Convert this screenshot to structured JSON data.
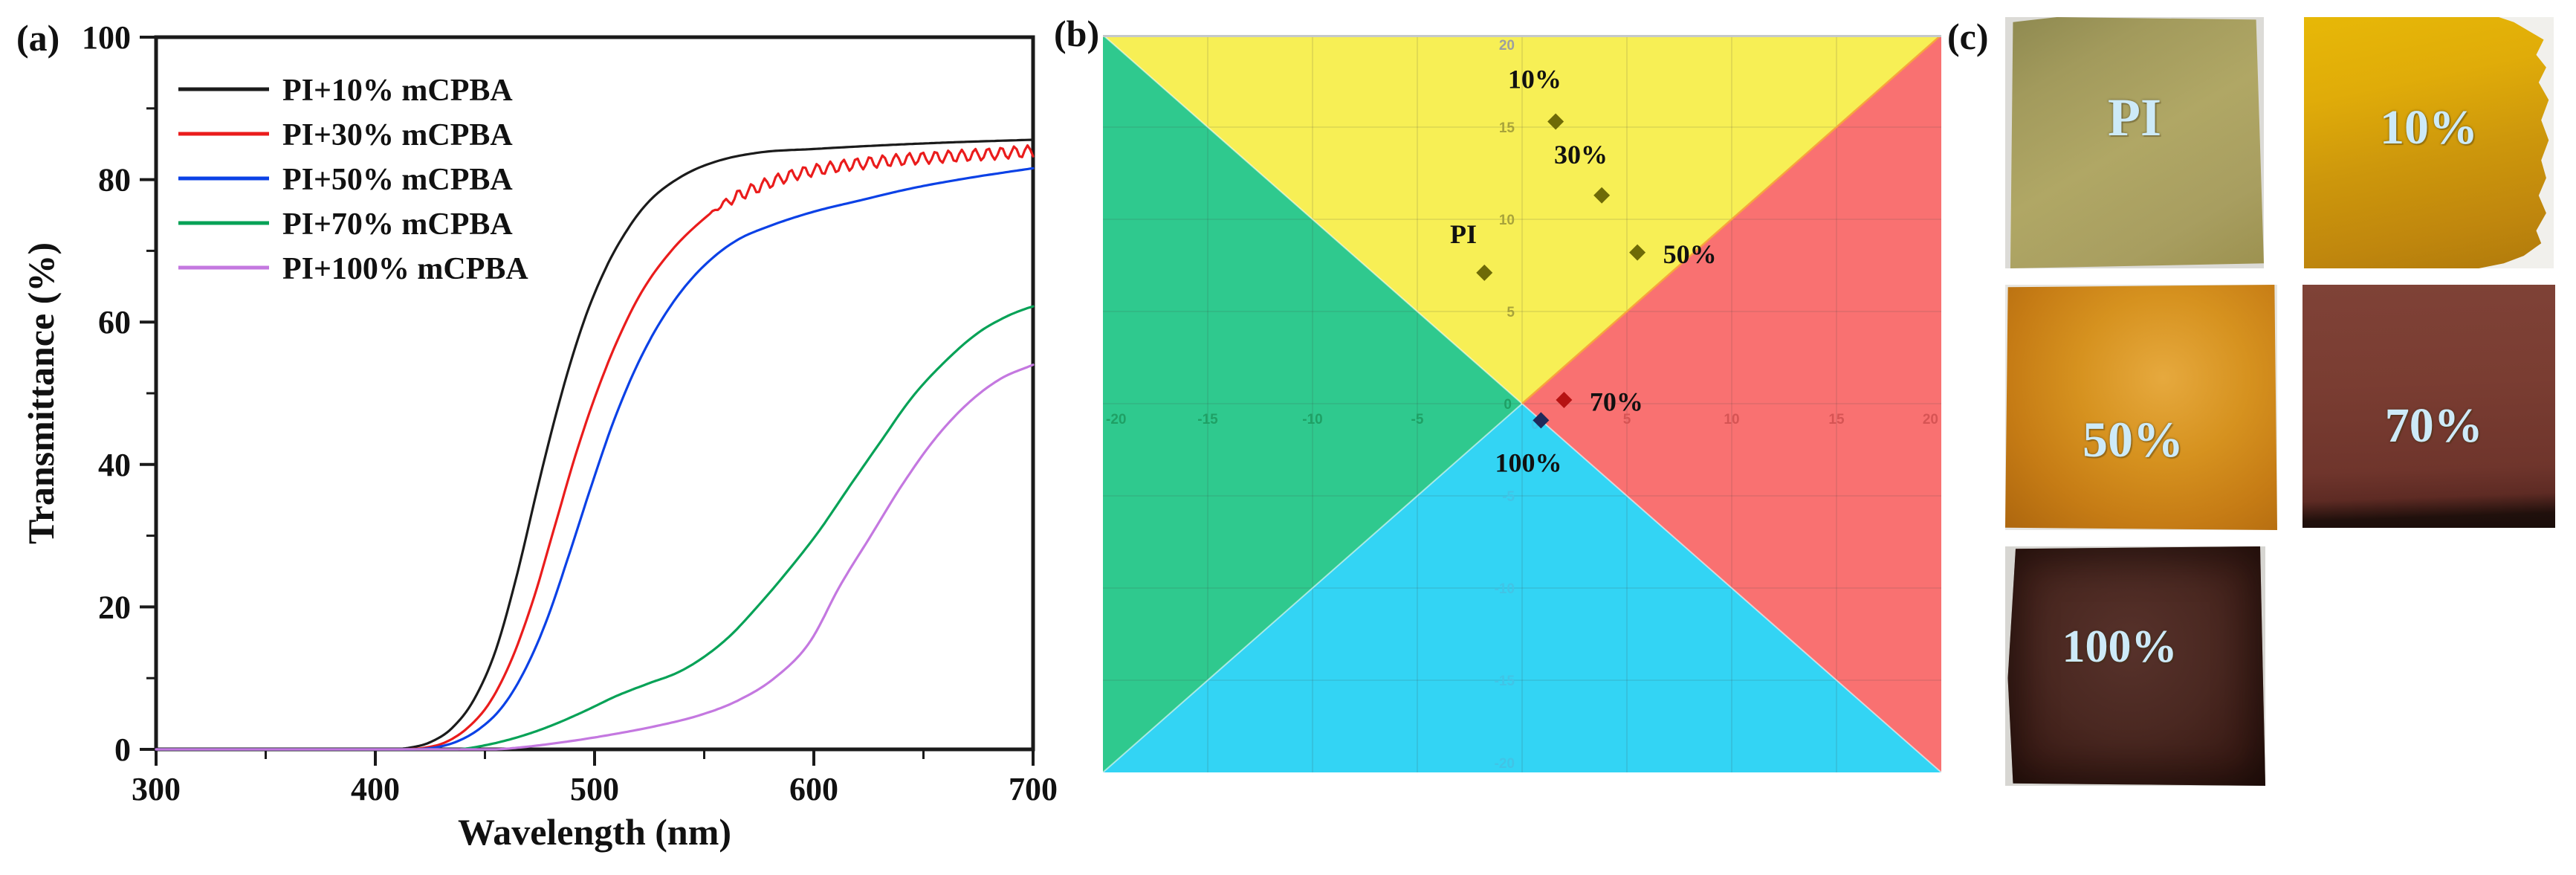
{
  "panels": {
    "a_label": "(a)",
    "b_label": "(b)",
    "c_label": "(c)"
  },
  "chart_data": [
    {
      "id": "transmittance-spectra",
      "type": "line",
      "title": "",
      "xlabel": "Wavelength (nm)",
      "ylabel": "Transmittance (%)",
      "xlim": [
        300,
        700
      ],
      "ylim": [
        0,
        100
      ],
      "x_major_ticks": [
        300,
        400,
        500,
        600,
        700
      ],
      "x_minor_ticks": [
        350,
        450,
        550,
        650
      ],
      "y_major_ticks": [
        0,
        20,
        40,
        60,
        80,
        100
      ],
      "y_minor_ticks": [
        10,
        30,
        50,
        70,
        90
      ],
      "grid": false,
      "legend_position": "upper-left",
      "axis_color": "#1a1a1a",
      "series": [
        {
          "name": "PI+10% mCPBA",
          "color": "#1b1b1b",
          "points": [
            [
              300,
              0
            ],
            [
              405,
              0
            ],
            [
              415,
              0.2
            ],
            [
              425,
              1
            ],
            [
              435,
              3
            ],
            [
              445,
              7
            ],
            [
              455,
              14
            ],
            [
              465,
              25
            ],
            [
              475,
              38
            ],
            [
              485,
              50
            ],
            [
              495,
              60
            ],
            [
              505,
              67.5
            ],
            [
              515,
              73
            ],
            [
              525,
              77
            ],
            [
              540,
              80.5
            ],
            [
              555,
              82.5
            ],
            [
              575,
              83.8
            ],
            [
              600,
              84.3
            ],
            [
              630,
              84.8
            ],
            [
              660,
              85.2
            ],
            [
              700,
              85.6
            ]
          ]
        },
        {
          "name": "PI+30% mCPBA",
          "color": "#ea1c1c",
          "ripple": {
            "start": 552,
            "end": 700,
            "amplitude": 0.85,
            "period": 6
          },
          "points": [
            [
              300,
              0
            ],
            [
              412,
              0
            ],
            [
              422,
              0.2
            ],
            [
              432,
              1
            ],
            [
              442,
              3
            ],
            [
              452,
              6.5
            ],
            [
              462,
              12.5
            ],
            [
              472,
              21
            ],
            [
              482,
              31.5
            ],
            [
              492,
              42
            ],
            [
              502,
              51
            ],
            [
              512,
              58.5
            ],
            [
              522,
              64.5
            ],
            [
              535,
              70
            ],
            [
              548,
              74
            ],
            [
              560,
              76.8
            ],
            [
              575,
              79
            ],
            [
              590,
              80.6
            ],
            [
              610,
              81.8
            ],
            [
              640,
              82.8
            ],
            [
              670,
              83.4
            ],
            [
              700,
              84
            ]
          ]
        },
        {
          "name": "PI+50% mCPBA",
          "color": "#0b41e6",
          "points": [
            [
              300,
              0
            ],
            [
              418,
              0
            ],
            [
              428,
              0.3
            ],
            [
              438,
              1.2
            ],
            [
              448,
              3
            ],
            [
              458,
              6
            ],
            [
              468,
              11
            ],
            [
              478,
              18
            ],
            [
              488,
              27
            ],
            [
              498,
              36.5
            ],
            [
              508,
              45.5
            ],
            [
              518,
              53
            ],
            [
              528,
              59
            ],
            [
              540,
              64.5
            ],
            [
              552,
              68.5
            ],
            [
              565,
              71.5
            ],
            [
              580,
              73.5
            ],
            [
              600,
              75.5
            ],
            [
              620,
              77
            ],
            [
              645,
              78.8
            ],
            [
              670,
              80.2
            ],
            [
              700,
              81.6
            ]
          ]
        },
        {
          "name": "PI+70% mCPBA",
          "color": "#07a257",
          "points": [
            [
              300,
              0
            ],
            [
              438,
              0
            ],
            [
              452,
              0.7
            ],
            [
              466,
              1.8
            ],
            [
              480,
              3.3
            ],
            [
              495,
              5.3
            ],
            [
              510,
              7.5
            ],
            [
              525,
              9.3
            ],
            [
              538,
              10.8
            ],
            [
              550,
              13
            ],
            [
              562,
              16
            ],
            [
              575,
              20.3
            ],
            [
              588,
              25
            ],
            [
              602,
              30.5
            ],
            [
              616,
              36.8
            ],
            [
              630,
              43
            ],
            [
              645,
              49.5
            ],
            [
              660,
              54.5
            ],
            [
              675,
              58.5
            ],
            [
              688,
              60.8
            ],
            [
              696,
              61.8
            ],
            [
              700,
              62.2
            ]
          ]
        },
        {
          "name": "PI+100% mCPBA",
          "color": "#c478e0",
          "points": [
            [
              300,
              0
            ],
            [
              455,
              0
            ],
            [
              470,
              0.4
            ],
            [
              490,
              1.2
            ],
            [
              510,
              2.2
            ],
            [
              530,
              3.4
            ],
            [
              548,
              4.8
            ],
            [
              565,
              6.8
            ],
            [
              582,
              10
            ],
            [
              598,
              15
            ],
            [
              612,
              23
            ],
            [
              626,
              30
            ],
            [
              640,
              37
            ],
            [
              655,
              43.5
            ],
            [
              670,
              48.5
            ],
            [
              685,
              52
            ],
            [
              700,
              54
            ]
          ]
        }
      ]
    },
    {
      "id": "color-coordinates",
      "type": "scatter",
      "xlim": [
        -20,
        20
      ],
      "ylim": [
        -20,
        20
      ],
      "grid_step": 5,
      "x_tick_labels": [
        -20,
        -15,
        -10,
        -5,
        0,
        5,
        10,
        15,
        20
      ],
      "y_tick_labels": [
        20,
        15,
        10,
        5,
        0,
        -5,
        -10,
        -15,
        -20
      ],
      "quadrant_colors": {
        "top": "#f7ef55",
        "right": "#f97171",
        "bottom": "#33d4f4",
        "left": "#2fc98e"
      },
      "boundary_orange": "#f8a43c",
      "tick_colors": {
        "x_negative": "#1fa065",
        "x_zero": "#1fa065",
        "x_positive": "#d65454",
        "y_positive": "#a8a33b",
        "y_top": "#9c9fa0",
        "y_zero": "#41c4e6",
        "y_negative": "#41c4e6"
      },
      "points": [
        {
          "label": "PI",
          "x": -1.8,
          "y": 7.1,
          "color": "#6e6a07",
          "label_x": -2.8,
          "label_y": 9.2
        },
        {
          "label": "10%",
          "x": 1.6,
          "y": 15.3,
          "color": "#6e6a07",
          "label_x": 0.6,
          "label_y": 17.6
        },
        {
          "label": "30%",
          "x": 3.8,
          "y": 11.3,
          "color": "#6e6a07",
          "label_x": 2.8,
          "label_y": 13.5
        },
        {
          "label": "50%",
          "x": 5.5,
          "y": 8.2,
          "color": "#6e6a07",
          "label_x": 8.0,
          "label_y": 8.1
        },
        {
          "label": "70%",
          "x": 2.0,
          "y": 0.2,
          "color": "#b61313",
          "label_x": 4.5,
          "label_y": 0.1
        },
        {
          "label": "100%",
          "x": 0.9,
          "y": -0.9,
          "color": "#1f2a5a",
          "label_x": 0.3,
          "label_y": -3.2
        }
      ],
      "point_label_color": "#111111"
    }
  ],
  "panel_c": {
    "photos": [
      {
        "label": "PI",
        "label_color": "#cdeaf8",
        "photo_background": "#dcdbd7",
        "film_background": "linear-gradient(150deg,#8e8950 0%,#a29a5c 22%,#b0a765 50%,#a89e60 78%,#9c914f 100%)"
      },
      {
        "label": "10%",
        "label_color": "#cdeaf8",
        "photo_background": "#f1f0ec",
        "film_background": "linear-gradient(168deg,#e7b807 0%,#e0ac09 28%,#cd970c 55%,#c0870d 80%,#b07a0c 100%)"
      },
      {
        "label": "50%",
        "label_color": "#cdeaf8",
        "photo_background": "#e7e6e2",
        "film_background": "radial-gradient(ellipse at 58% 38%,#e6a93e 0%,#d6921f 38%,#c67c15 68%,#ad660e 100%)"
      },
      {
        "label": "70%",
        "label_color": "#cdeaf8",
        "photo_background": "#dad9d5",
        "film_background": "linear-gradient(178deg,#7f4237 0%,#7a3d32 40%,#6f352c 75%,#5e2b24 86%,#20100c 94%,#1a0d0a 100%)"
      },
      {
        "label": "100%",
        "label_color": "#cdeaf8",
        "photo_background": "#d7d6d2",
        "film_background": "radial-gradient(ellipse at 48% 42%,#57322b 0%,#4a2821 45%,#3a1b15 80%,#2a120d 100%)"
      }
    ]
  }
}
